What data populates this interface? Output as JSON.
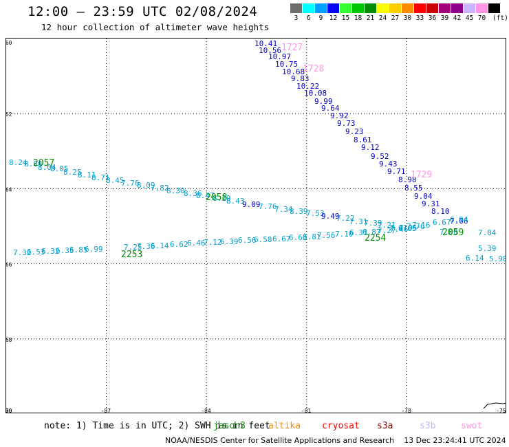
{
  "header": {
    "title": "12:00 – 23:59 UTC 02/08/2024",
    "subtitle": "12 hour collection of altimeter wave heights"
  },
  "legend": {
    "unit": "(ft)",
    "bins": [
      {
        "label": "3",
        "color": "#6e6e6e"
      },
      {
        "label": "6",
        "color": "#00ffff"
      },
      {
        "label": "9",
        "color": "#00a0ff"
      },
      {
        "label": "12",
        "color": "#0000ff"
      },
      {
        "label": "15",
        "color": "#32ff32"
      },
      {
        "label": "18",
        "color": "#00c800"
      },
      {
        "label": "21",
        "color": "#008c00"
      },
      {
        "label": "24",
        "color": "#ffff00"
      },
      {
        "label": "27",
        "color": "#ffcd00"
      },
      {
        "label": "30",
        "color": "#ff8c00"
      },
      {
        "label": "33",
        "color": "#ff0000"
      },
      {
        "label": "36",
        "color": "#c80000"
      },
      {
        "label": "39",
        "color": "#a00078"
      },
      {
        "label": "42",
        "color": "#8c008c"
      },
      {
        "label": "45",
        "color": "#c8b4ff"
      },
      {
        "label": "70",
        "color": "#ff96e6"
      },
      {
        "label": "",
        "color": "#000000"
      }
    ]
  },
  "map": {
    "lon_range": [
      -90,
      -75
    ],
    "lat_range": [
      -70,
      -60
    ],
    "lon_ticks": [
      "-90",
      "-87",
      "-84",
      "-81",
      "-78",
      "-75"
    ],
    "lat_ticks": [
      "-60",
      "-62",
      "-64",
      "-66",
      "-68",
      "-70"
    ],
    "track_colors": {
      "jason": "#00a0d0",
      "blue": "#0000c8",
      "time_green": "#008c00",
      "time_pink": "#ff96e6"
    },
    "times": [
      {
        "label": "1727",
        "color": "#ff96e6"
      },
      {
        "label": "1728",
        "color": "#ff96e6"
      },
      {
        "label": "1729",
        "color": "#ff96e6"
      },
      {
        "label": "2057",
        "color": "#008c00"
      },
      {
        "label": "2058",
        "color": "#008c00"
      },
      {
        "label": "2059",
        "color": "#008c00"
      },
      {
        "label": "2253",
        "color": "#008c00"
      },
      {
        "label": "2254",
        "color": "#008c00"
      }
    ],
    "track_a": {
      "color": "#0000c8",
      "values": [
        "10.41",
        "10.56",
        "10.97",
        "10.75",
        "10.68",
        "9.83",
        "10.22",
        "10.08",
        "9.99",
        "9.64",
        "9.92",
        "9.73",
        "9.23",
        "8.61",
        "9.12",
        "9.52",
        "9.43",
        "9.71",
        "8.98",
        "8.55",
        "9.04",
        "9.31",
        "8.10",
        "7.06"
      ]
    },
    "track_b": {
      "color": "#00a0d0",
      "values": [
        "8.24",
        "8.66",
        "8.04",
        "8.05",
        "8.25",
        "8.11",
        "8.71",
        "8.45",
        "7.76",
        "8.09",
        "7.82",
        "8.30",
        "8.36",
        "8.47",
        "8.29",
        "8.43",
        "9.09",
        "7.76",
        "7.34",
        "8.39",
        "7.53",
        "9.49",
        "7.22",
        "7.31",
        "7.39",
        "7.21",
        "7.41",
        "7.05",
        "7.76",
        "7.16",
        "6.67",
        "6.94"
      ]
    },
    "track_c": {
      "color": "#00a0d0",
      "values": [
        "7.32",
        "6.53",
        "6.32",
        "6.35",
        "6.85",
        "6.99",
        "7.25",
        "7.36",
        "6.14",
        "6.62",
        "6.46",
        "7.12",
        "6.39",
        "6.56",
        "6.58",
        "6.67",
        "6.63",
        "6.81",
        "7.56",
        "7.10",
        "6.37",
        "6.87",
        "7.27",
        "7.46",
        "6.65",
        "7.00",
        "7.04",
        "5.39",
        "6.14",
        "5.98"
      ]
    }
  },
  "footer": {
    "note": "note:  1) Time is in UTC; 2) SWH is in feet",
    "satellites": [
      {
        "name": "jason3",
        "color": "#008c00"
      },
      {
        "name": "altika",
        "color": "#ff8c00"
      },
      {
        "name": "cryosat",
        "color": "#ff0000"
      },
      {
        "name": "s3a",
        "color": "#a00000"
      },
      {
        "name": "s3b",
        "color": "#c8b4ff"
      },
      {
        "name": "swot",
        "color": "#ff96e6"
      }
    ],
    "credit": "NOAA/NESDIS Center for Satellite Applications and Research",
    "timestamp": "13 Dec 23:24:41 UTC 2024"
  }
}
